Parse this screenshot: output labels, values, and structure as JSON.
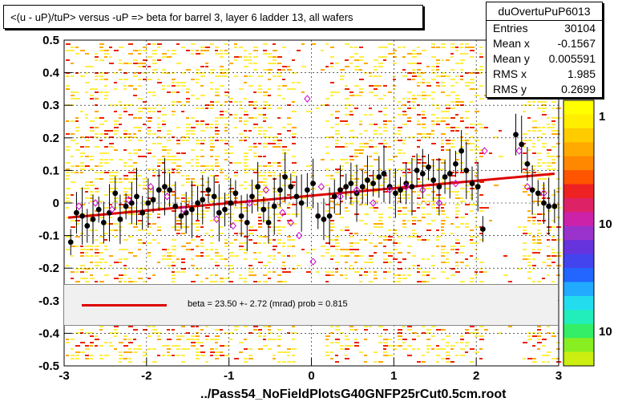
{
  "title": "<(u - uP)/tuP> versus  -uP => beta for barrel 3, layer 6 ladder 13, all wafers",
  "stats": {
    "name": "duOvertuPuP6013",
    "rows": [
      {
        "key": "Entries",
        "value": "30104"
      },
      {
        "key": "Mean x",
        "value": "-0.1567"
      },
      {
        "key": "Mean y",
        "value": "0.005591"
      },
      {
        "key": "RMS x",
        "value": "1.985"
      },
      {
        "key": "RMS y",
        "value": "0.2699"
      }
    ]
  },
  "fit": {
    "text": "beta =   23.50 +-   2.72 (mrad) prob = 0.815",
    "color": "#dd0000"
  },
  "footer": "../Pass54_NoFieldPlotsG40GNFP25rCut0.5cm.root",
  "colors": {
    "heat_low": "#ffee44",
    "heat_mid": "#ffaa00",
    "heat_high": "#ee2200",
    "profile": "#000000",
    "alt_profile": "#cc00cc",
    "fit": "#dd0000"
  },
  "chart_data": {
    "type": "scatter",
    "xlim": [
      -3,
      3
    ],
    "ylim": [
      -0.5,
      0.5
    ],
    "x_ticks": [
      "-3",
      "-2",
      "-1",
      "0",
      "1",
      "2",
      "3"
    ],
    "y_ticks": [
      "-0.5",
      "-0.4",
      "-0.3",
      "-0.2",
      "-0.1",
      "0",
      "0.1",
      "0.2",
      "0.3",
      "0.4",
      "0.5"
    ],
    "grid": true,
    "colorbar_ticks": [
      "1",
      "10",
      "10"
    ],
    "fit_line": {
      "x": [
        -2.95,
        2.95
      ],
      "y": [
        -0.045,
        0.09
      ]
    },
    "series": [
      {
        "marker": "filled-circle",
        "x": [
          -2.92,
          -2.85,
          -2.78,
          -2.72,
          -2.65,
          -2.58,
          -2.52,
          -2.45,
          -2.38,
          -2.32,
          -2.25,
          -2.18,
          -2.12,
          -2.05,
          -1.98,
          -1.92,
          -1.85,
          -1.78,
          -1.72,
          -1.65,
          -1.58,
          -1.52,
          -1.45,
          -1.38,
          -1.32,
          -1.25,
          -1.18,
          -1.12,
          -1.05,
          -0.98,
          -0.92,
          -0.85,
          -0.78,
          -0.72,
          -0.65,
          -0.58,
          -0.52,
          -0.45,
          -0.38,
          -0.32,
          -0.25,
          -0.18,
          -0.12,
          -0.05,
          0.02,
          0.08,
          0.15,
          0.22,
          0.28,
          0.35,
          0.42,
          0.48,
          0.55,
          0.62,
          0.68,
          0.75,
          0.82,
          0.88,
          0.95,
          1.02,
          1.08,
          1.15,
          1.22,
          1.28,
          1.35,
          1.42,
          1.48,
          1.55,
          1.62,
          1.68,
          1.75,
          1.82,
          1.88,
          1.95,
          2.02,
          2.08,
          2.48,
          2.55,
          2.62,
          2.68,
          2.75,
          2.82,
          2.88,
          2.95
        ],
        "y": [
          -0.12,
          -0.03,
          -0.04,
          -0.07,
          -0.05,
          -0.02,
          -0.06,
          -0.03,
          0.03,
          -0.05,
          -0.01,
          0.0,
          0.02,
          -0.03,
          0.0,
          0.01,
          0.04,
          0.05,
          0.04,
          -0.01,
          -0.04,
          -0.03,
          -0.02,
          0.0,
          0.01,
          0.04,
          0.02,
          -0.03,
          -0.02,
          0.0,
          0.03,
          -0.04,
          -0.06,
          0.02,
          0.05,
          -0.02,
          -0.06,
          -0.01,
          0.04,
          0.08,
          0.05,
          0.02,
          0.0,
          0.04,
          0.06,
          -0.04,
          -0.05,
          -0.04,
          0.02,
          0.04,
          0.05,
          0.06,
          0.03,
          0.05,
          0.07,
          0.06,
          0.08,
          0.09,
          0.05,
          0.03,
          0.04,
          0.06,
          0.05,
          0.1,
          0.09,
          0.11,
          0.07,
          0.05,
          0.08,
          0.09,
          0.12,
          0.16,
          0.1,
          0.06,
          0.05,
          -0.08,
          0.21,
          0.18,
          0.12,
          0.04,
          0.03,
          0.0,
          -0.01,
          -0.01
        ]
      },
      {
        "marker": "open-diamond",
        "x": [
          -2.82,
          -2.62,
          -2.42,
          -2.22,
          -1.95,
          -1.75,
          -1.55,
          -1.15,
          -0.95,
          -0.75,
          -0.55,
          -0.35,
          -0.25,
          -0.15,
          -0.05,
          0.02,
          0.12,
          0.35,
          0.55,
          0.75,
          0.95,
          1.15,
          1.35,
          1.55,
          1.75,
          2.1,
          2.52,
          2.62,
          2.82
        ],
        "y": [
          -0.01,
          0.0,
          -0.02,
          0.01,
          0.05,
          0.02,
          -0.02,
          -0.05,
          -0.07,
          0.0,
          0.04,
          -0.03,
          -0.06,
          -0.1,
          0.32,
          -0.18,
          0.05,
          0.02,
          0.04,
          0.0,
          0.04,
          0.05,
          0.04,
          0.0,
          0.06,
          0.16,
          0.16,
          0.05,
          0.03
        ]
      }
    ]
  }
}
